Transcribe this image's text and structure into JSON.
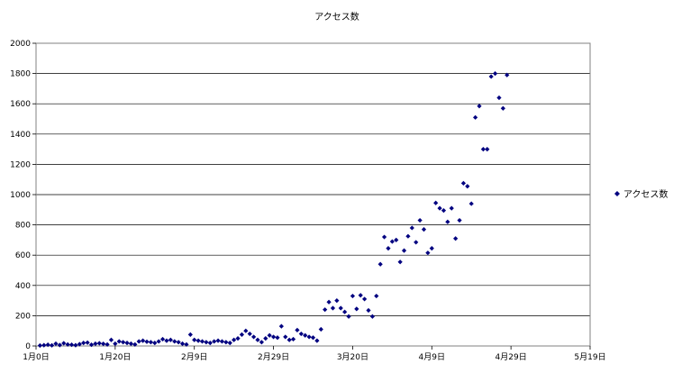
{
  "chart_data": {
    "type": "scatter",
    "title": "アクセス数",
    "xlabel": "",
    "ylabel": "",
    "x_ticks": [
      "1月0日",
      "1月20日",
      "2月9日",
      "2月29日",
      "3月20日",
      "4月9日",
      "4月29日",
      "5月19日"
    ],
    "x_tick_days": [
      0,
      20,
      40,
      60,
      80,
      100,
      120,
      140
    ],
    "xlim_days": [
      0,
      140
    ],
    "ylim": [
      0,
      2000
    ],
    "y_ticks": [
      0,
      200,
      400,
      600,
      800,
      1000,
      1200,
      1400,
      1600,
      1800,
      2000
    ],
    "grid": "horizontal",
    "legend_position": "right",
    "colors": {
      "series": "#000080",
      "grid": "#000000",
      "plot_border": "#808080"
    },
    "series": [
      {
        "name": "アクセス数",
        "marker": "diamond",
        "points": [
          [
            1,
            3
          ],
          [
            2,
            5
          ],
          [
            3,
            8
          ],
          [
            4,
            4
          ],
          [
            5,
            15
          ],
          [
            6,
            6
          ],
          [
            7,
            18
          ],
          [
            8,
            10
          ],
          [
            9,
            8
          ],
          [
            10,
            5
          ],
          [
            11,
            12
          ],
          [
            12,
            20
          ],
          [
            13,
            22
          ],
          [
            14,
            8
          ],
          [
            15,
            15
          ],
          [
            16,
            18
          ],
          [
            17,
            14
          ],
          [
            18,
            10
          ],
          [
            19,
            40
          ],
          [
            20,
            15
          ],
          [
            21,
            30
          ],
          [
            22,
            25
          ],
          [
            23,
            20
          ],
          [
            24,
            15
          ],
          [
            25,
            10
          ],
          [
            26,
            30
          ],
          [
            27,
            35
          ],
          [
            28,
            28
          ],
          [
            29,
            25
          ],
          [
            30,
            20
          ],
          [
            31,
            30
          ],
          [
            32,
            45
          ],
          [
            33,
            35
          ],
          [
            34,
            40
          ],
          [
            35,
            30
          ],
          [
            36,
            25
          ],
          [
            37,
            15
          ],
          [
            38,
            10
          ],
          [
            39,
            75
          ],
          [
            40,
            40
          ],
          [
            41,
            35
          ],
          [
            42,
            30
          ],
          [
            43,
            25
          ],
          [
            44,
            20
          ],
          [
            45,
            30
          ],
          [
            46,
            35
          ],
          [
            47,
            30
          ],
          [
            48,
            25
          ],
          [
            49,
            20
          ],
          [
            50,
            40
          ],
          [
            51,
            50
          ],
          [
            52,
            75
          ],
          [
            53,
            100
          ],
          [
            54,
            80
          ],
          [
            55,
            60
          ],
          [
            56,
            40
          ],
          [
            57,
            25
          ],
          [
            58,
            50
          ],
          [
            59,
            70
          ],
          [
            60,
            60
          ],
          [
            61,
            55
          ],
          [
            62,
            130
          ],
          [
            63,
            60
          ],
          [
            64,
            40
          ],
          [
            65,
            45
          ],
          [
            66,
            105
          ],
          [
            67,
            80
          ],
          [
            68,
            70
          ],
          [
            69,
            60
          ],
          [
            70,
            55
          ],
          [
            71,
            35
          ],
          [
            72,
            110
          ],
          [
            73,
            240
          ],
          [
            74,
            290
          ],
          [
            75,
            250
          ],
          [
            76,
            300
          ],
          [
            77,
            250
          ],
          [
            78,
            225
          ],
          [
            79,
            195
          ],
          [
            80,
            330
          ],
          [
            81,
            245
          ],
          [
            82,
            335
          ],
          [
            83,
            310
          ],
          [
            84,
            235
          ],
          [
            85,
            195
          ],
          [
            86,
            330
          ],
          [
            87,
            540
          ],
          [
            88,
            720
          ],
          [
            89,
            645
          ],
          [
            90,
            690
          ],
          [
            91,
            700
          ],
          [
            92,
            555
          ],
          [
            93,
            630
          ],
          [
            94,
            725
          ],
          [
            95,
            780
          ],
          [
            96,
            685
          ],
          [
            97,
            830
          ],
          [
            98,
            770
          ],
          [
            99,
            615
          ],
          [
            100,
            645
          ],
          [
            101,
            945
          ],
          [
            102,
            910
          ],
          [
            103,
            895
          ],
          [
            104,
            820
          ],
          [
            105,
            910
          ],
          [
            106,
            710
          ],
          [
            107,
            830
          ],
          [
            108,
            1075
          ],
          [
            109,
            1055
          ],
          [
            110,
            940
          ],
          [
            111,
            1510
          ],
          [
            112,
            1585
          ],
          [
            113,
            1300
          ],
          [
            114,
            1300
          ],
          [
            115,
            1780
          ],
          [
            116,
            1800
          ],
          [
            117,
            1640
          ],
          [
            118,
            1570
          ],
          [
            119,
            1790
          ]
        ]
      }
    ]
  }
}
